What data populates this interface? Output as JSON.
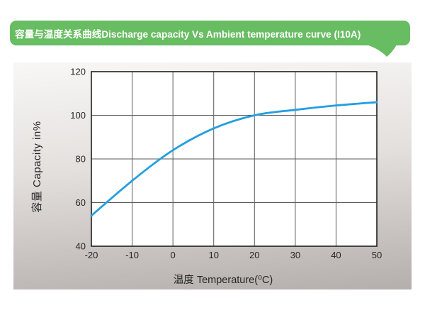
{
  "banner": {
    "title": "容量与温度关系曲线Discharge capacity Vs Ambient temperature curve (I10A)",
    "bg_color": "#68bd62"
  },
  "chart_data": {
    "type": "line",
    "title": "Discharge capacity Vs Ambient temperature curve (I10A)",
    "xlabel": "温度 Temperature(⁰C)",
    "ylabel": "容量 Capacity in%",
    "xlim": [
      -20,
      50
    ],
    "ylim": [
      40,
      120
    ],
    "xticks": [
      -20,
      -10,
      0,
      10,
      20,
      30,
      40,
      50
    ],
    "yticks": [
      40,
      60,
      80,
      100,
      120
    ],
    "grid": true,
    "legend": false,
    "x": [
      -20,
      -10,
      0,
      10,
      20,
      30,
      40,
      50
    ],
    "series": [
      {
        "name": "discharge-capacity-I10A",
        "values": [
          54,
          70,
          84,
          94,
          100,
          102.5,
          104.5,
          106
        ],
        "color": "#249fe0"
      }
    ]
  },
  "colors": {
    "plot_background": "#ffffff",
    "grid_line": "#5a5a5a",
    "plot_border": "#1f1f1f",
    "tick_text": "#262626",
    "panel_gradient_top": "#f8f7f6",
    "panel_gradient_bottom": "#b4afac"
  }
}
